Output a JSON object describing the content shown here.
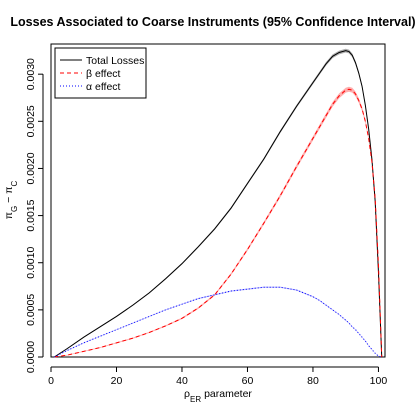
{
  "chart_data": {
    "type": "line",
    "title": "Losses Associated to Coarse Instruments (95% Confidence Interval)",
    "xlabel": {
      "base": "ρ",
      "sub": "ER",
      "rest": " parameter"
    },
    "ylabel": {
      "p1": "π",
      "s1": "G",
      "mid": " − ",
      "p2": "π",
      "s2": "C"
    },
    "xlim": [
      0,
      102
    ],
    "ylim": [
      0,
      0.00332
    ],
    "x_ticks": [
      0,
      20,
      40,
      60,
      80,
      100
    ],
    "x_tick_labels": [
      "0",
      "20",
      "40",
      "60",
      "80",
      "100"
    ],
    "y_ticks": [
      0,
      0.0005,
      0.001,
      0.0015,
      0.002,
      0.0025,
      0.003
    ],
    "y_tick_labels": [
      "0.0000",
      "0.0005",
      "0.0010",
      "0.0015",
      "0.0020",
      "0.0025",
      "0.0030"
    ],
    "grid": false,
    "legend_position": "top-left",
    "x": [
      1,
      5,
      10,
      15,
      20,
      25,
      30,
      35,
      40,
      45,
      50,
      55,
      60,
      65,
      70,
      75,
      80,
      82,
      84,
      86,
      88,
      90,
      91,
      92,
      93,
      94,
      95,
      96,
      97,
      98,
      99,
      100,
      101
    ],
    "series": [
      {
        "name": "Total Losses",
        "color": "#000000",
        "band_color": "#999999",
        "dash": "solid",
        "values": [
          0,
          9e-05,
          0.00021,
          0.00032,
          0.00043,
          0.00055,
          0.00068,
          0.00083,
          0.00099,
          0.00117,
          0.00136,
          0.00158,
          0.00184,
          0.0021,
          0.00239,
          0.00266,
          0.00291,
          0.00301,
          0.00311,
          0.00319,
          0.00323,
          0.00325,
          0.00324,
          0.0032,
          0.00312,
          0.00301,
          0.00287,
          0.00267,
          0.00242,
          0.0021,
          0.00165,
          0.0009,
          0.0
        ],
        "band": [
          0,
          5e-06,
          5e-06,
          6e-06,
          6e-06,
          7e-06,
          7e-06,
          8e-06,
          9e-06,
          1e-05,
          1.1e-05,
          1.2e-05,
          1.3e-05,
          1.4e-05,
          1.5e-05,
          1.6e-05,
          1.7e-05,
          1.8e-05,
          1.9e-05,
          2e-05,
          2e-05,
          2e-05,
          2e-05,
          2e-05,
          2e-05,
          2e-05,
          2e-05,
          1.8e-05,
          1.6e-05,
          1.4e-05,
          1.2e-05,
          1e-05,
          0
        ]
      },
      {
        "name": "β effect",
        "color": "#ff0000",
        "band_color": "#ff9a9a",
        "dash": "dashed",
        "values": [
          0,
          2e-05,
          6e-05,
          0.0001,
          0.00015,
          0.0002,
          0.00026,
          0.00033,
          0.00041,
          0.00052,
          0.00066,
          0.00088,
          0.00114,
          0.00142,
          0.00171,
          0.00202,
          0.00232,
          0.00244,
          0.00256,
          0.00268,
          0.00277,
          0.00283,
          0.00284,
          0.00283,
          0.00279,
          0.00272,
          0.00263,
          0.0025,
          0.00232,
          0.00207,
          0.00168,
          0.00098,
          0.0
        ],
        "band": [
          0,
          4e-06,
          4e-06,
          5e-06,
          5e-06,
          6e-06,
          6e-06,
          7e-06,
          8e-06,
          9e-06,
          1e-05,
          1.2e-05,
          1.4e-05,
          1.6e-05,
          1.8e-05,
          2e-05,
          2.2e-05,
          2.3e-05,
          2.4e-05,
          2.5e-05,
          2.6e-05,
          2.6e-05,
          2.6e-05,
          2.6e-05,
          2.5e-05,
          2.4e-05,
          2.3e-05,
          2.2e-05,
          2e-05,
          1.8e-05,
          1.5e-05,
          1e-05,
          0
        ]
      },
      {
        "name": "α effect",
        "color": "#0000ff",
        "band_color": "#a8a8ff",
        "dash": "dotted",
        "values": [
          0,
          7e-05,
          0.00015,
          0.00022,
          0.00029,
          0.00036,
          0.00043,
          0.0005,
          0.00056,
          0.00062,
          0.00066,
          0.0007,
          0.00072,
          0.00074,
          0.00074,
          0.00071,
          0.00064,
          0.0006,
          0.00055,
          0.0005,
          0.00045,
          0.00039,
          0.00036,
          0.00032,
          0.00029,
          0.00025,
          0.00021,
          0.00017,
          0.00012,
          8e-05,
          4e-05,
          1e-05,
          0.0
        ],
        "band": [
          0,
          4e-06,
          4e-06,
          4e-06,
          4e-06,
          5e-06,
          5e-06,
          5e-06,
          5e-06,
          6e-06,
          6e-06,
          6e-06,
          6e-06,
          6e-06,
          6e-06,
          6e-06,
          6e-06,
          6e-06,
          6e-06,
          5e-06,
          5e-06,
          5e-06,
          5e-06,
          5e-06,
          5e-06,
          4e-06,
          4e-06,
          4e-06,
          4e-06,
          3e-06,
          3e-06,
          2e-06,
          0
        ]
      }
    ]
  }
}
